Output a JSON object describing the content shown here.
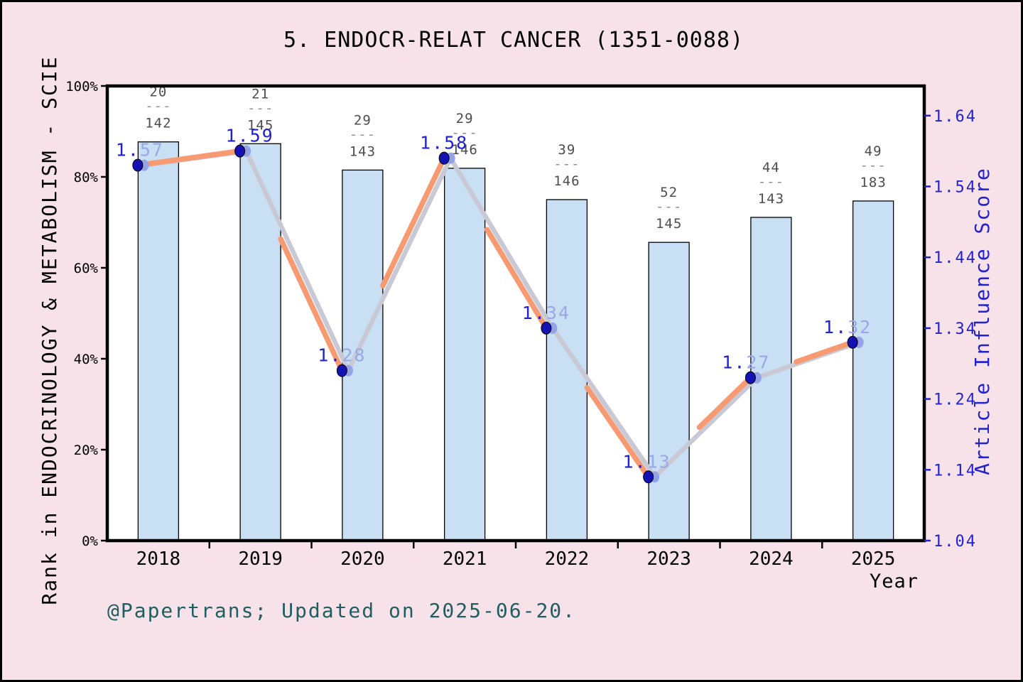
{
  "chart_data": {
    "type": "bar+line",
    "title": "5. ENDOCR-RELAT CANCER (1351-0088)",
    "caption": "@Papertrans; Updated on 2025-06-20.",
    "x_axis": {
      "label": "Year",
      "categories": [
        "2018",
        "2019",
        "2020",
        "2021",
        "2022",
        "2023",
        "2024",
        "2025"
      ]
    },
    "left_axis": {
      "label": "Rank in ENDOCRINOLOGY & METABOLISM - SCIE",
      "range": [
        0,
        100
      ],
      "ticks": [
        "0%",
        "20%",
        "40%",
        "60%",
        "80%",
        "100%"
      ]
    },
    "right_axis": {
      "label": "Article Influence Score",
      "tick_bottom_value": 1.04,
      "tick_step": 0.1,
      "ticks": [
        "1.04",
        "1.14",
        "1.24",
        "1.34",
        "1.44",
        "1.54",
        "1.64"
      ]
    },
    "series": [
      {
        "name": "rank-in-category-bars",
        "type": "bar",
        "bar_top_percent": [
          87.7,
          87.3,
          81.5,
          81.9,
          75.0,
          65.6,
          71.1,
          74.7
        ],
        "rank_fractions": [
          {
            "numerator": "20",
            "dash": "---",
            "denominator": "142"
          },
          {
            "numerator": "21",
            "dash": "---",
            "denominator": "145"
          },
          {
            "numerator": "29",
            "dash": "---",
            "denominator": "143"
          },
          {
            "numerator": "29",
            "dash": "---",
            "denominator": "146"
          },
          {
            "numerator": "39",
            "dash": "---",
            "denominator": "146"
          },
          {
            "numerator": "52",
            "dash": "---",
            "denominator": "145"
          },
          {
            "numerator": "44",
            "dash": "---",
            "denominator": "143"
          },
          {
            "numerator": "49",
            "dash": "---",
            "denominator": "183"
          }
        ]
      },
      {
        "name": "article-influence-score-line",
        "type": "line",
        "values": [
          1.57,
          1.59,
          1.28,
          1.58,
          1.34,
          1.13,
          1.27,
          1.32
        ],
        "point_labels": [
          {
            "dark": "1.",
            "light": "57"
          },
          {
            "dark": "1.59",
            "light": ""
          },
          {
            "dark": "1.",
            "light": "28"
          },
          {
            "dark": "1.58",
            "light": ""
          },
          {
            "dark": "1.",
            "light": "34"
          },
          {
            "dark": "1.",
            "light": "13"
          },
          {
            "dark": "1.",
            "light": "27"
          },
          {
            "dark": "1.",
            "light": "32"
          }
        ]
      }
    ],
    "colors": {
      "background": "#f6e2e8",
      "plot_background": "#ffffff",
      "bar_fill": "#c9dff4",
      "bar_border": "#000000",
      "line_orange": "#f79a72",
      "line_shadow_gray": "#c9c9d6",
      "marker_navy": "#1512b4",
      "marker_light_blue": "#93a3e6",
      "point_label_dark_blue": "#2222cc",
      "point_label_light_blue": "#9aa8e8",
      "right_axis_blue": "#2222d4",
      "fraction_gray": "#4d4d4d",
      "fraction_dash_gray": "#909090",
      "caption_teal": "#215e62",
      "axis_black": "#000000"
    }
  }
}
